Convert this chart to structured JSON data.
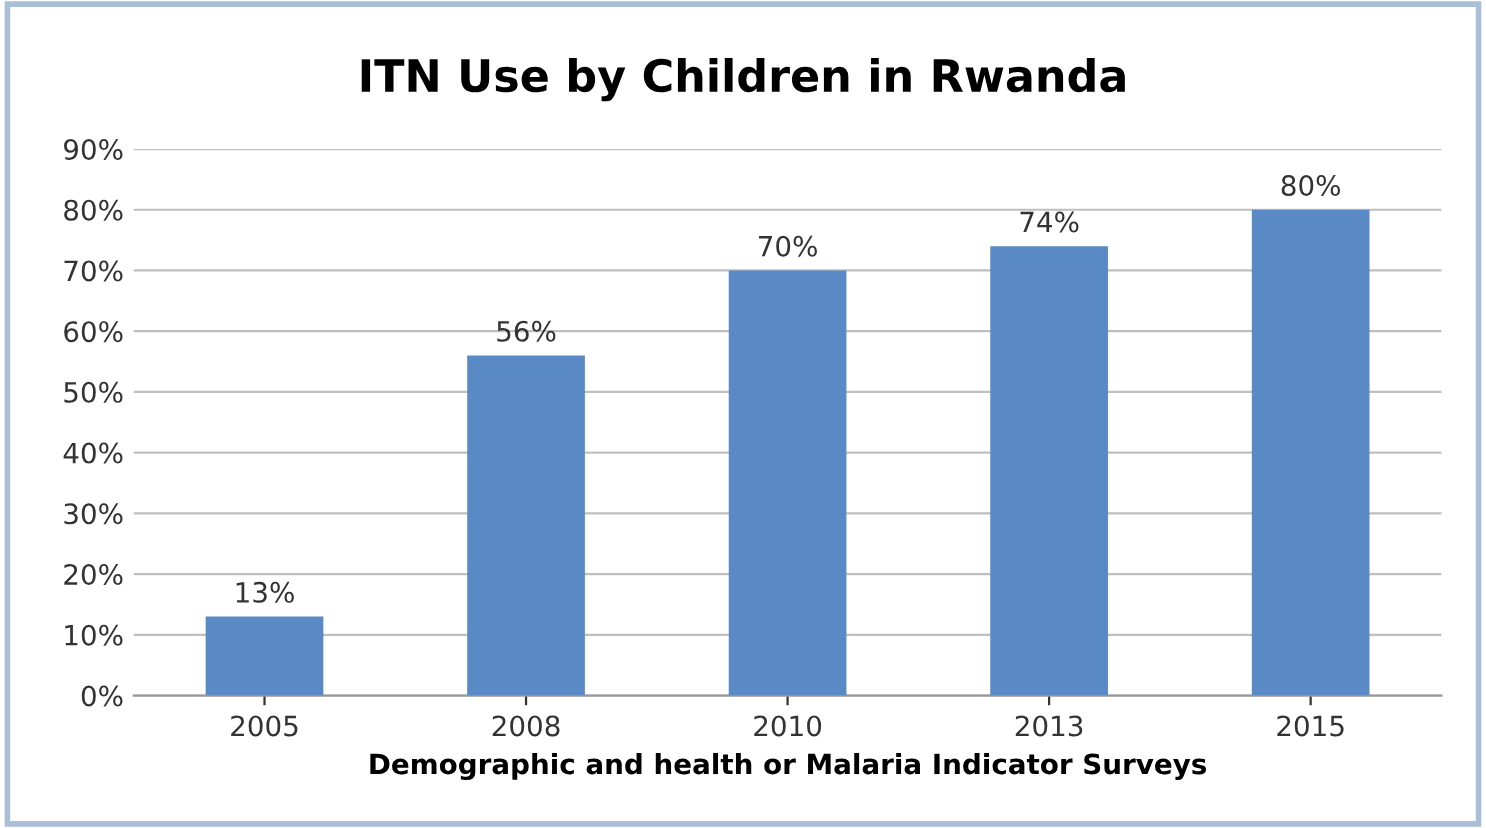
{
  "chart_data": {
    "type": "bar",
    "title": "ITN Use by Children in Rwanda",
    "xlabel": "Demographic and health or Malaria Indicator Surveys",
    "categories": [
      "2005",
      "2008",
      "2010",
      "2013",
      "2015"
    ],
    "values": [
      13,
      56,
      70,
      74,
      80
    ],
    "value_labels": [
      "13%",
      "56%",
      "70%",
      "74%",
      "80%"
    ],
    "color": "#5a8ac6",
    "ylim": [
      0,
      90
    ],
    "yticks": [
      {
        "value": 0,
        "label": "0%"
      },
      {
        "value": 10,
        "label": "10%"
      },
      {
        "value": 20,
        "label": "20%"
      },
      {
        "value": 30,
        "label": "30%"
      },
      {
        "value": 40,
        "label": "40%"
      },
      {
        "value": 50,
        "label": "50%"
      },
      {
        "value": 60,
        "label": "60%"
      },
      {
        "value": 70,
        "label": "70%"
      },
      {
        "value": 80,
        "label": "80%"
      },
      {
        "value": 90,
        "label": "90%"
      }
    ],
    "grid": "y",
    "legend": false
  }
}
